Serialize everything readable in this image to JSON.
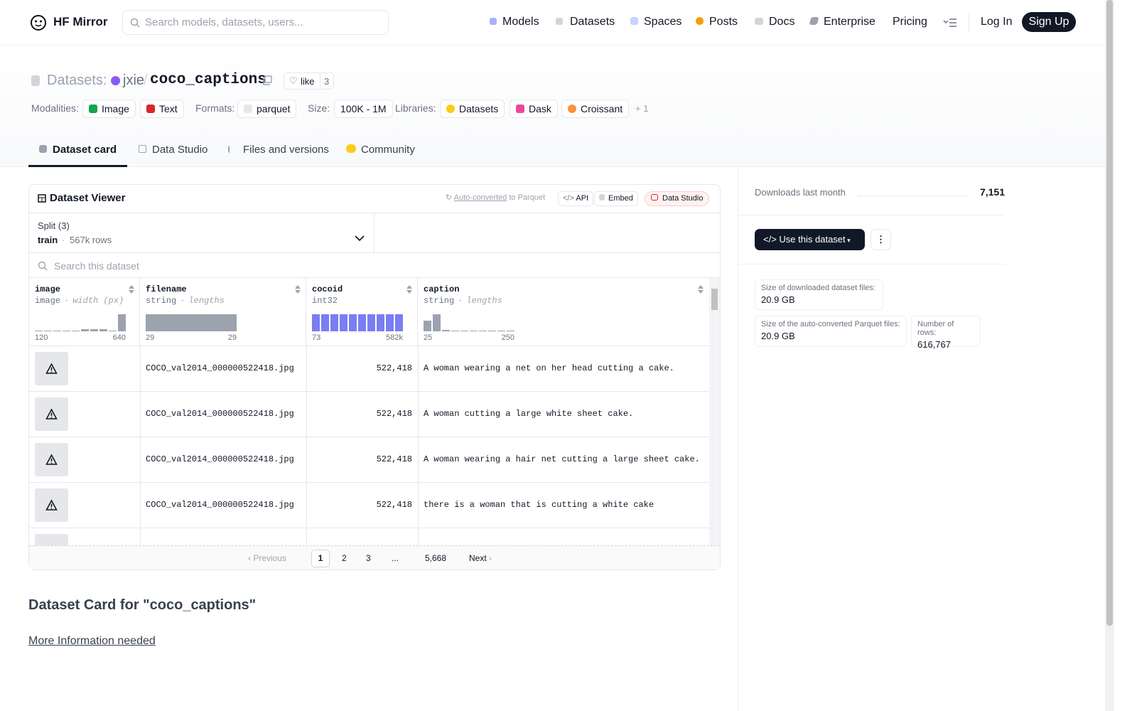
{
  "nav": {
    "brand": "HF Mirror",
    "search_placeholder": "Search models, datasets, users...",
    "links": [
      "Models",
      "Datasets",
      "Spaces",
      "Posts",
      "Docs",
      "Enterprise",
      "Pricing"
    ],
    "login": "Log In",
    "signup": "Sign Up"
  },
  "header": {
    "prefix": "Datasets:",
    "owner": "jxie",
    "separator": "/",
    "name": "coco_captions",
    "like": "like",
    "like_count": "3",
    "tag_groups": [
      {
        "label": "Modalities:",
        "tags": [
          "Image",
          "Text"
        ]
      },
      {
        "label": "Formats:",
        "tags": [
          "parquet"
        ]
      },
      {
        "label": "Size:",
        "tags": [
          "100K - 1M"
        ]
      },
      {
        "label": "Libraries:",
        "tags": [
          "Datasets",
          "Dask",
          "Croissant"
        ],
        "more": "+ 1"
      }
    ]
  },
  "tabs": [
    "Dataset card",
    "Data Studio",
    "Files and versions",
    "Community"
  ],
  "viewer": {
    "title": "Dataset Viewer",
    "converted": "Auto-converted",
    "converted_suffix": "to Parquet",
    "buttons": [
      "API",
      "Embed",
      "Data Studio"
    ],
    "split_label": "Split (3)",
    "split": "train",
    "separator": "·",
    "split_rows": "567k rows",
    "search_placeholder": "Search this dataset",
    "columns": [
      {
        "name": "image",
        "dtype": "image",
        "stat": "width (px)",
        "min": "120",
        "max": "640",
        "histogram": [
          1,
          1,
          1,
          1,
          1,
          3,
          3,
          3,
          1,
          24
        ]
      },
      {
        "name": "filename",
        "dtype": "string",
        "stat": "lengths",
        "min": "29",
        "max": "29",
        "histogram": [
          24
        ]
      },
      {
        "name": "cocoid",
        "dtype": "int32",
        "stat": null,
        "min": "73",
        "max": "582k",
        "histogram": [
          24,
          24,
          24,
          24,
          24,
          24,
          24,
          24,
          24,
          24
        ]
      },
      {
        "name": "caption",
        "dtype": "string",
        "stat": "lengths",
        "min": "25",
        "max": "250",
        "histogram": [
          15,
          24,
          2,
          1,
          1,
          1,
          1,
          1,
          1,
          1
        ]
      }
    ],
    "rows": [
      [
        "COCO_val2014_000000522418.jpg",
        "522,418",
        "A woman wearing a net on her head cutting a cake."
      ],
      [
        "COCO_val2014_000000522418.jpg",
        "522,418",
        "A woman cutting a large white sheet cake."
      ],
      [
        "COCO_val2014_000000522418.jpg",
        "522,418",
        "A woman wearing a hair net cutting a large sheet cake."
      ],
      [
        "COCO_val2014_000000522418.jpg",
        "522,418",
        "there is a woman that is cutting a white cake"
      ]
    ],
    "pagination": {
      "previous": "Previous",
      "pages": [
        "1",
        "2",
        "3",
        "...",
        "5,668"
      ],
      "next": "Next"
    }
  },
  "card": {
    "title": "Dataset Card for \"coco_captions\"",
    "link": "More Information needed"
  },
  "sidebar": {
    "downloads_label": "Downloads last month",
    "downloads": "7,151",
    "use_button": "Use this dataset",
    "stats": [
      {
        "label": "Size of downloaded dataset files:",
        "value": "20.9 GB"
      },
      {
        "label": "Size of the auto-converted Parquet files:",
        "value": "20.9 GB"
      },
      {
        "label": "Number of rows:",
        "value": "616,767"
      }
    ]
  }
}
